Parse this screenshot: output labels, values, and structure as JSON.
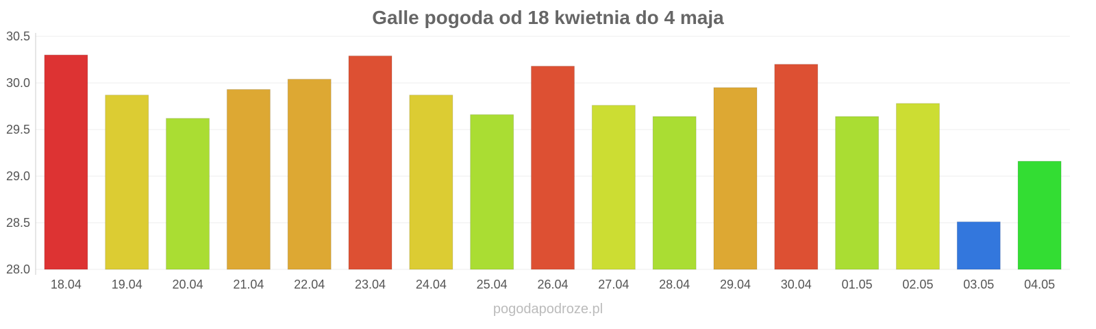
{
  "chart_data": {
    "type": "bar",
    "title": "Galle pogoda od 18 kwietnia do 4 maja",
    "xlabel": "",
    "ylabel": "",
    "ylim": [
      28.0,
      30.5
    ],
    "yticks": [
      "28.0",
      "28.5",
      "29.0",
      "29.5",
      "30.0",
      "30.5"
    ],
    "grid": true,
    "categories": [
      "18.04",
      "19.04",
      "20.04",
      "21.04",
      "22.04",
      "23.04",
      "24.04",
      "25.04",
      "26.04",
      "27.04",
      "28.04",
      "29.04",
      "30.04",
      "01.05",
      "02.05",
      "03.05",
      "04.05"
    ],
    "values": [
      30.3,
      29.87,
      29.62,
      29.93,
      30.04,
      30.29,
      29.87,
      29.66,
      30.18,
      29.76,
      29.64,
      29.95,
      30.2,
      29.64,
      29.78,
      28.51,
      29.16
    ],
    "colors": [
      "#dd3333",
      "#dccc33",
      "#aadd33",
      "#dda833",
      "#dda833",
      "#dd5033",
      "#dccc33",
      "#aadd33",
      "#dd5033",
      "#ccdd33",
      "#aadd33",
      "#dda833",
      "#dd5033",
      "#aadd33",
      "#ccdd33",
      "#3377dd",
      "#33dd33"
    ]
  },
  "watermark": "pogodapodroze.pl"
}
